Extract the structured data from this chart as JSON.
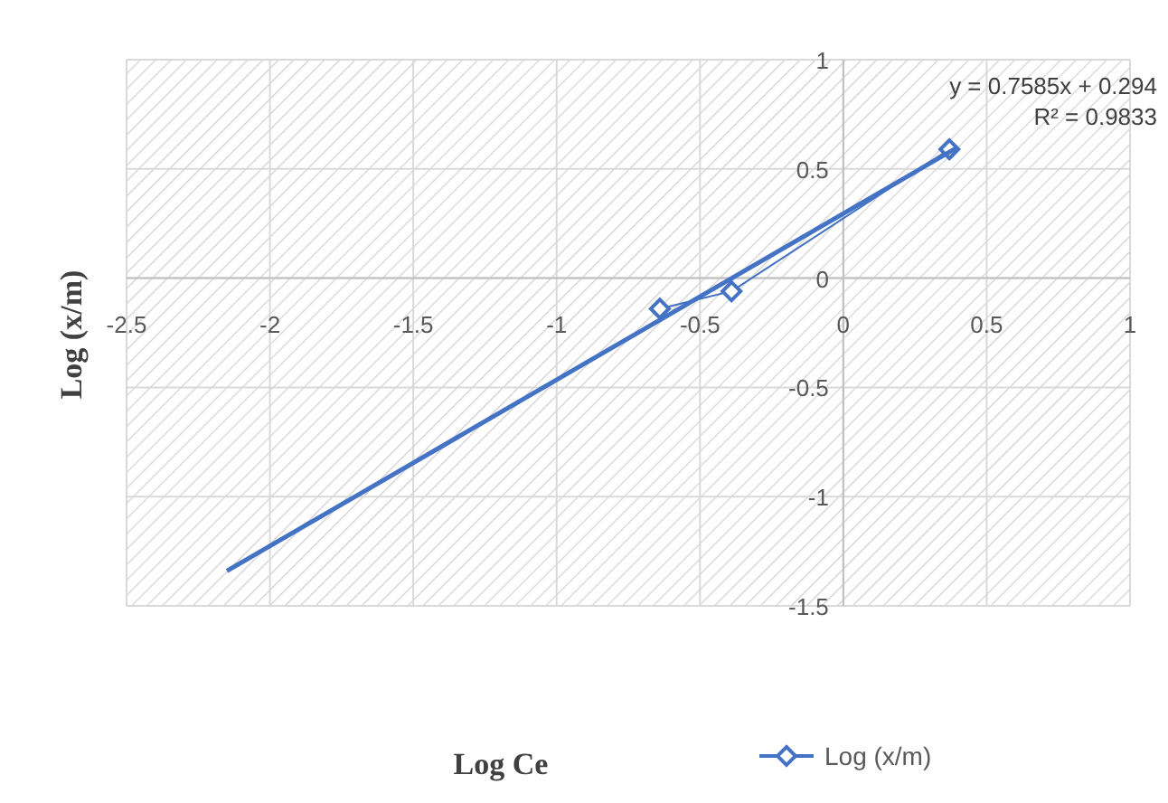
{
  "chart_data": {
    "type": "line",
    "xlabel": "Log Ce",
    "ylabel": "Log (x/m)",
    "x": [
      -0.64,
      -0.39,
      0.37
    ],
    "series": [
      {
        "name": "Log (x/m)",
        "color": "#4472c4",
        "values": [
          -0.14,
          -0.06,
          0.59
        ],
        "marker": "diamond"
      },
      {
        "type": "line",
        "color": "#4472c4",
        "x": [
          -2.15,
          0.4
        ],
        "values": [
          -1.34,
          0.6
        ],
        "marker": "none"
      }
    ],
    "xlim": [
      -2.5,
      1
    ],
    "xticks": [
      -2.5,
      -2,
      -1.5,
      -1,
      -0.5,
      0,
      0.5,
      1
    ],
    "ylim": [
      -1.5,
      1
    ],
    "yticks": [
      -1.5,
      -1,
      -0.5,
      0,
      0.5,
      1
    ],
    "grid": true,
    "legend": "bottom",
    "annotations": [
      "y = 0.7585x + 0.294",
      "R² = 0.9833"
    ]
  }
}
